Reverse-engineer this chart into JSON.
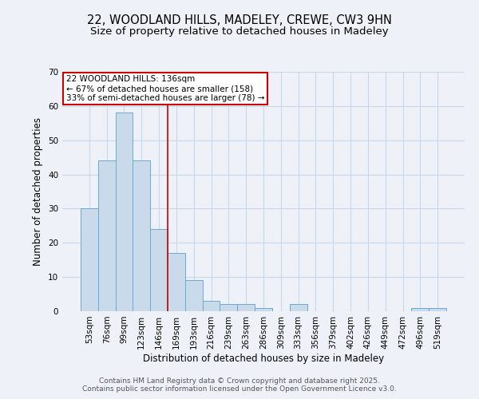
{
  "title_line1": "22, WOODLAND HILLS, MADELEY, CREWE, CW3 9HN",
  "title_line2": "Size of property relative to detached houses in Madeley",
  "xlabel": "Distribution of detached houses by size in Madeley",
  "ylabel": "Number of detached properties",
  "categories": [
    "53sqm",
    "76sqm",
    "99sqm",
    "123sqm",
    "146sqm",
    "169sqm",
    "193sqm",
    "216sqm",
    "239sqm",
    "263sqm",
    "286sqm",
    "309sqm",
    "333sqm",
    "356sqm",
    "379sqm",
    "402sqm",
    "426sqm",
    "449sqm",
    "472sqm",
    "496sqm",
    "519sqm"
  ],
  "values": [
    30,
    44,
    58,
    44,
    24,
    17,
    9,
    3,
    2,
    2,
    1,
    0,
    2,
    0,
    0,
    0,
    0,
    0,
    0,
    1,
    1
  ],
  "bar_color": "#c9daea",
  "bar_edge_color": "#6aaad4",
  "grid_color": "#c8d8ea",
  "background_color": "#eef2f8",
  "annotation_box_text": "22 WOODLAND HILLS: 136sqm\n← 67% of detached houses are smaller (158)\n33% of semi-detached houses are larger (78) →",
  "annotation_box_color": "#ffffff",
  "annotation_box_edge_color": "#cc0000",
  "property_line_x": 4.5,
  "ylim": [
    0,
    70
  ],
  "yticks": [
    0,
    10,
    20,
    30,
    40,
    50,
    60,
    70
  ],
  "footer_line1": "Contains HM Land Registry data © Crown copyright and database right 2025.",
  "footer_line2": "Contains public sector information licensed under the Open Government Licence v3.0.",
  "title_fontsize": 10.5,
  "subtitle_fontsize": 9.5,
  "axis_label_fontsize": 8.5,
  "tick_fontsize": 7.5,
  "annotation_fontsize": 7.5,
  "footer_fontsize": 6.5
}
